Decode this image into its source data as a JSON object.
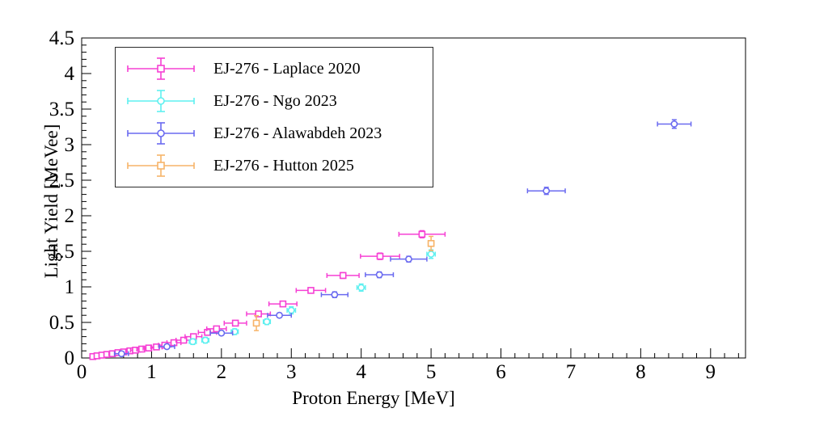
{
  "chart_data": {
    "type": "scatter",
    "title": "",
    "xlabel": "Proton Energy [MeV]",
    "ylabel": "Light Yield [MeVee]",
    "xlim": [
      0,
      9.5
    ],
    "ylim": [
      0,
      4.5
    ],
    "x_major_tick_step": 1,
    "x_minor_tick_step": 0.2,
    "y_major_tick_step": 0.5,
    "y_minor_tick_step": 0.1,
    "grid": false,
    "frame_color": "#000000",
    "legend_position": "top-left",
    "series": [
      {
        "name": "EJ-276 - Laplace 2020",
        "color": "#f640d4",
        "marker": "square",
        "points": [
          {
            "x": 0.16,
            "y": 0.02,
            "xerr": 0.03,
            "yerr": 0.01
          },
          {
            "x": 0.22,
            "y": 0.03,
            "xerr": 0.03,
            "yerr": 0.01
          },
          {
            "x": 0.29,
            "y": 0.04,
            "xerr": 0.04,
            "yerr": 0.01
          },
          {
            "x": 0.36,
            "y": 0.05,
            "xerr": 0.04,
            "yerr": 0.01
          },
          {
            "x": 0.44,
            "y": 0.06,
            "xerr": 0.05,
            "yerr": 0.015
          },
          {
            "x": 0.52,
            "y": 0.075,
            "xerr": 0.05,
            "yerr": 0.015
          },
          {
            "x": 0.6,
            "y": 0.085,
            "xerr": 0.06,
            "yerr": 0.015
          },
          {
            "x": 0.69,
            "y": 0.1,
            "xerr": 0.06,
            "yerr": 0.015
          },
          {
            "x": 0.77,
            "y": 0.11,
            "xerr": 0.07,
            "yerr": 0.02
          },
          {
            "x": 0.86,
            "y": 0.125,
            "xerr": 0.07,
            "yerr": 0.02
          },
          {
            "x": 0.96,
            "y": 0.14,
            "xerr": 0.08,
            "yerr": 0.02
          },
          {
            "x": 1.07,
            "y": 0.155,
            "xerr": 0.08,
            "yerr": 0.02
          },
          {
            "x": 1.19,
            "y": 0.18,
            "xerr": 0.09,
            "yerr": 0.02
          },
          {
            "x": 1.32,
            "y": 0.215,
            "xerr": 0.1,
            "yerr": 0.02
          },
          {
            "x": 1.46,
            "y": 0.25,
            "xerr": 0.11,
            "yerr": 0.025
          },
          {
            "x": 1.6,
            "y": 0.3,
            "xerr": 0.12,
            "yerr": 0.025
          },
          {
            "x": 1.8,
            "y": 0.36,
            "xerr": 0.13,
            "yerr": 0.025
          },
          {
            "x": 1.93,
            "y": 0.41,
            "xerr": 0.14,
            "yerr": 0.03
          },
          {
            "x": 2.2,
            "y": 0.49,
            "xerr": 0.16,
            "yerr": 0.03
          },
          {
            "x": 2.53,
            "y": 0.62,
            "xerr": 0.17,
            "yerr": 0.03
          },
          {
            "x": 2.88,
            "y": 0.76,
            "xerr": 0.2,
            "yerr": 0.035
          },
          {
            "x": 3.28,
            "y": 0.95,
            "xerr": 0.21,
            "yerr": 0.035
          },
          {
            "x": 3.74,
            "y": 1.16,
            "xerr": 0.23,
            "yerr": 0.04
          },
          {
            "x": 4.27,
            "y": 1.43,
            "xerr": 0.28,
            "yerr": 0.045
          },
          {
            "x": 4.87,
            "y": 1.74,
            "xerr": 0.33,
            "yerr": 0.05
          }
        ]
      },
      {
        "name": "EJ-276 - Ngo 2023",
        "color": "#5ff0f0",
        "marker": "circle",
        "points": [
          {
            "x": 1.59,
            "y": 0.23,
            "xerr": 0.05,
            "yerr": 0.04
          },
          {
            "x": 1.77,
            "y": 0.25,
            "xerr": 0.05,
            "yerr": 0.04
          },
          {
            "x": 2.19,
            "y": 0.37,
            "xerr": 0.05,
            "yerr": 0.04
          },
          {
            "x": 2.65,
            "y": 0.51,
            "xerr": 0.05,
            "yerr": 0.04
          },
          {
            "x": 3.0,
            "y": 0.67,
            "xerr": 0.06,
            "yerr": 0.05
          },
          {
            "x": 4.0,
            "y": 0.99,
            "xerr": 0.06,
            "yerr": 0.05
          },
          {
            "x": 5.0,
            "y": 1.46,
            "xerr": 0.06,
            "yerr": 0.06
          }
        ]
      },
      {
        "name": "EJ-276 - Alawabdeh 2023",
        "color": "#6a6af0",
        "marker": "circle",
        "points": [
          {
            "x": 0.57,
            "y": 0.06,
            "xerr": 0.1,
            "yerr": 0.02
          },
          {
            "x": 1.22,
            "y": 0.16,
            "xerr": 0.11,
            "yerr": 0.02
          },
          {
            "x": 2.0,
            "y": 0.35,
            "xerr": 0.16,
            "yerr": 0.03
          },
          {
            "x": 2.83,
            "y": 0.6,
            "xerr": 0.17,
            "yerr": 0.03
          },
          {
            "x": 3.62,
            "y": 0.89,
            "xerr": 0.19,
            "yerr": 0.04
          },
          {
            "x": 4.26,
            "y": 1.17,
            "xerr": 0.2,
            "yerr": 0.04
          },
          {
            "x": 4.68,
            "y": 1.39,
            "xerr": 0.26,
            "yerr": 0.04
          },
          {
            "x": 6.65,
            "y": 2.35,
            "xerr": 0.27,
            "yerr": 0.05
          },
          {
            "x": 8.48,
            "y": 3.29,
            "xerr": 0.24,
            "yerr": 0.06
          }
        ]
      },
      {
        "name": "EJ-276 - Hutton 2025",
        "color": "#f7b469",
        "marker": "square",
        "points": [
          {
            "x": 2.5,
            "y": 0.49,
            "xerr": 0.04,
            "yerr": 0.105
          },
          {
            "x": 5.0,
            "y": 1.61,
            "xerr": 0.04,
            "yerr": 0.1
          }
        ]
      }
    ]
  }
}
